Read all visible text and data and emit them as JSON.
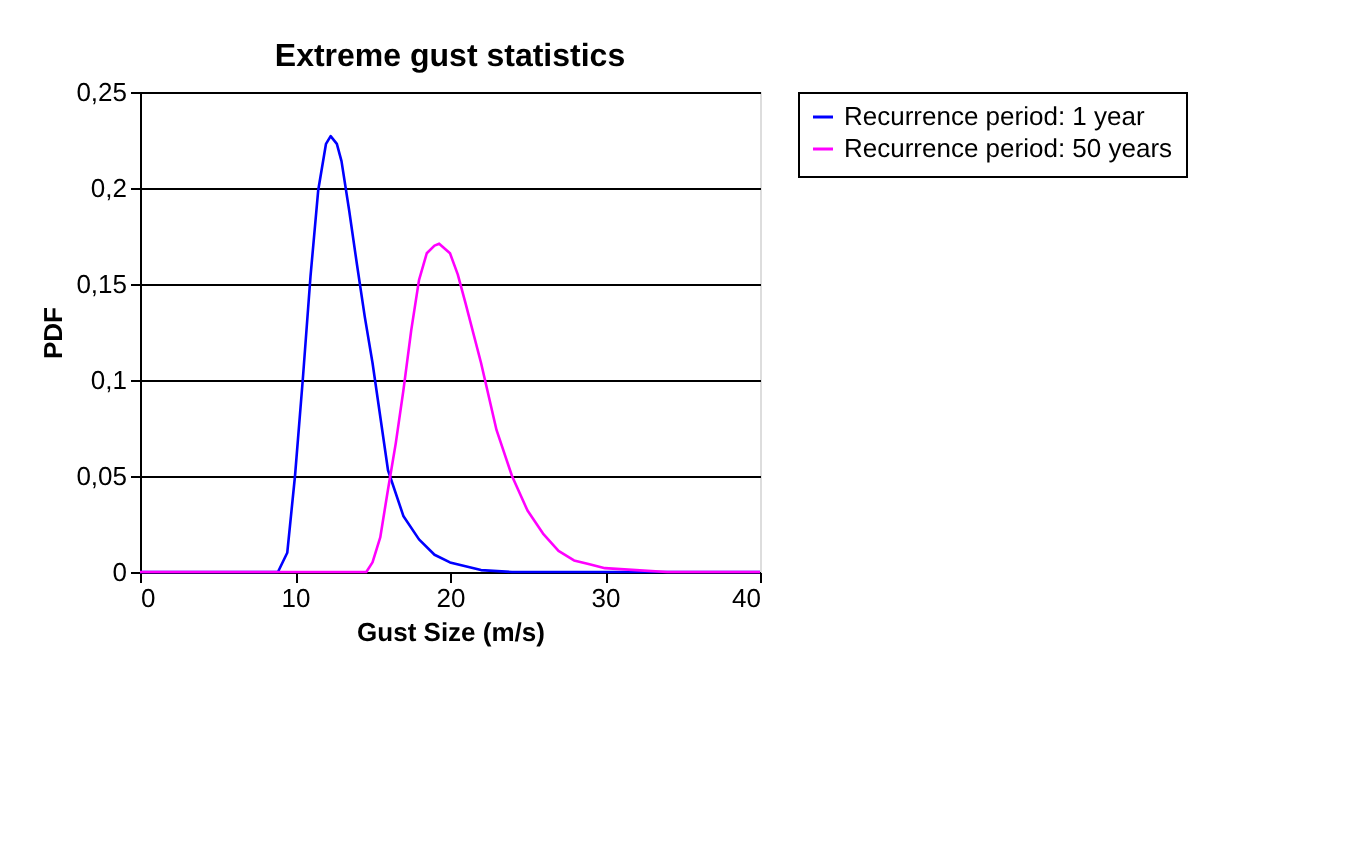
{
  "chart_data": {
    "type": "line",
    "title": "Extreme gust statistics",
    "xlabel": "Gust Size (m/s)",
    "ylabel": "PDF",
    "xlim": [
      0,
      40
    ],
    "xticks": [
      0,
      10,
      20,
      30,
      40
    ],
    "ylim": [
      0,
      0.25
    ],
    "yticks": [
      0,
      {
        "value": 0.05,
        "label": "0,05"
      },
      {
        "value": 0.1,
        "label": "0,1"
      },
      {
        "value": 0.15,
        "label": "0,15"
      },
      {
        "value": 0.2,
        "label": "0,2"
      },
      {
        "value": 0.25,
        "label": "0,25"
      }
    ],
    "grid": "y",
    "legend": "right",
    "marker": "none",
    "line_style": "solid",
    "series": [
      {
        "name": "Recurrence period:  1 year",
        "color": "#0000ff",
        "x": [
          0,
          8.9,
          9.5,
          10,
          10.5,
          11,
          11.5,
          12,
          12.3,
          12.7,
          13,
          13.5,
          14,
          14.5,
          15,
          16,
          17,
          18,
          19,
          20,
          21,
          22,
          24,
          40
        ],
        "values": [
          0,
          0,
          0.01,
          0.05,
          0.1,
          0.154,
          0.199,
          0.223,
          0.227,
          0.223,
          0.214,
          0.188,
          0.16,
          0.133,
          0.109,
          0.053,
          0.029,
          0.017,
          0.009,
          0.005,
          0.003,
          0.001,
          0,
          0
        ]
      },
      {
        "name": "Recurrence period: 50 years",
        "color": "#ff00ff",
        "x": [
          0,
          14.6,
          15,
          15.5,
          16,
          16.5,
          17,
          17.5,
          18,
          18.5,
          19,
          19.3,
          20,
          20.5,
          21,
          22,
          23,
          24,
          25,
          26,
          27,
          28,
          29,
          30,
          32,
          34,
          40
        ],
        "values": [
          0,
          0,
          0.005,
          0.018,
          0.043,
          0.067,
          0.095,
          0.126,
          0.152,
          0.166,
          0.17,
          0.171,
          0.166,
          0.155,
          0.14,
          0.109,
          0.074,
          0.05,
          0.032,
          0.02,
          0.011,
          0.006,
          0.004,
          0.002,
          0.001,
          0,
          0
        ]
      }
    ]
  }
}
